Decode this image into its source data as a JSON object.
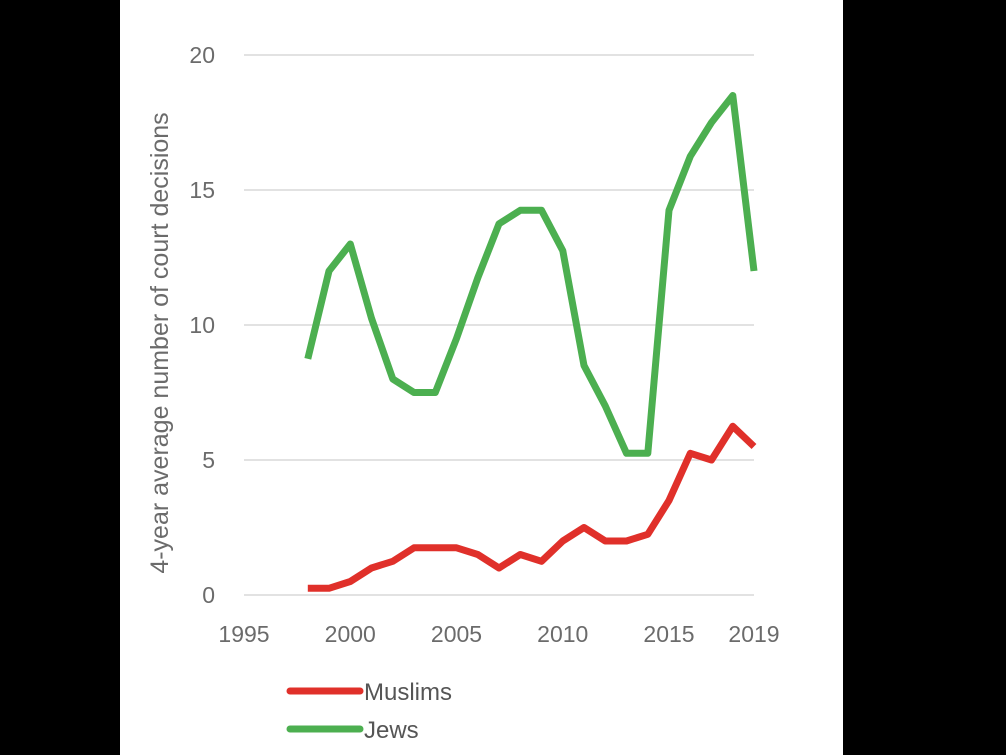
{
  "chart_data": {
    "type": "line",
    "ylabel": "4-year average number of court decisions",
    "xlabel": "",
    "title": "",
    "xlim": [
      1995,
      2019
    ],
    "ylim": [
      0,
      20
    ],
    "xticks": [
      {
        "value": 1995,
        "label": "1995"
      },
      {
        "value": 2000,
        "label": "2000"
      },
      {
        "value": 2005,
        "label": "2005"
      },
      {
        "value": 2010,
        "label": "2010"
      },
      {
        "value": 2015,
        "label": "2015"
      },
      {
        "value": 2019,
        "label": "2019"
      }
    ],
    "yticks": [
      {
        "value": 0,
        "label": "0"
      },
      {
        "value": 5,
        "label": "5"
      },
      {
        "value": 10,
        "label": "10"
      },
      {
        "value": 15,
        "label": "15"
      },
      {
        "value": 20,
        "label": "20"
      }
    ],
    "grid": true,
    "legend_position": "bottom",
    "series": [
      {
        "name": "Muslims",
        "color": "#e0302a",
        "x": [
          1998,
          1999,
          2000,
          2001,
          2002,
          2003,
          2004,
          2005,
          2006,
          2007,
          2008,
          2009,
          2010,
          2011,
          2012,
          2013,
          2014,
          2015,
          2016,
          2017,
          2018,
          2019
        ],
        "values": [
          0.25,
          0.25,
          0.5,
          1.0,
          1.25,
          1.75,
          1.75,
          1.75,
          1.5,
          1.0,
          1.5,
          1.25,
          2.0,
          2.5,
          2.0,
          2.0,
          2.25,
          3.5,
          5.25,
          5.0,
          6.25,
          5.5
        ]
      },
      {
        "name": "Jews",
        "color": "#4caf50",
        "x": [
          1998,
          1999,
          2000,
          2001,
          2002,
          2003,
          2004,
          2005,
          2006,
          2007,
          2008,
          2009,
          2010,
          2011,
          2012,
          2013,
          2014,
          2015,
          2016,
          2017,
          2018,
          2019
        ],
        "values": [
          8.75,
          12.0,
          13.0,
          10.25,
          8.0,
          7.5,
          7.5,
          9.5,
          11.75,
          13.75,
          14.25,
          14.25,
          12.75,
          8.5,
          7.0,
          5.25,
          5.25,
          14.25,
          16.25,
          17.5,
          18.5,
          12.0
        ]
      }
    ]
  }
}
